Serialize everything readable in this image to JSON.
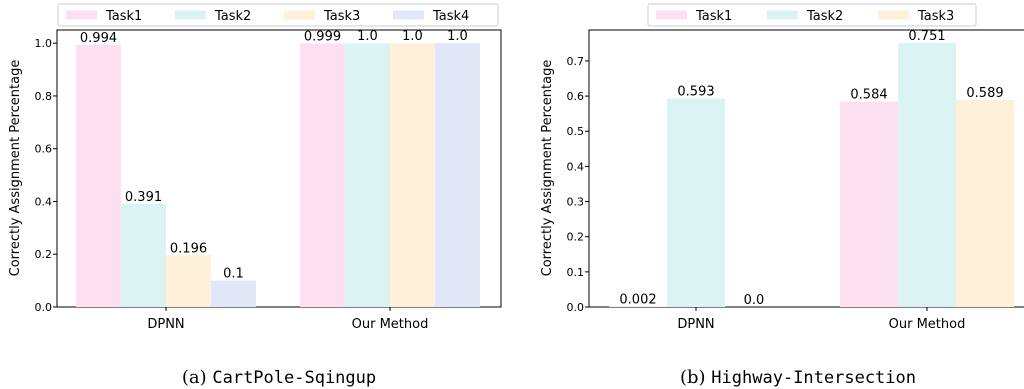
{
  "colors": [
    "#fde0ef",
    "#dbf4f3",
    "#fef0d9",
    "#e2e7f8"
  ],
  "chart_data": [
    {
      "type": "bar",
      "categories": [
        "DPNN",
        "Our Method"
      ],
      "series": [
        {
          "name": "Task1",
          "values": [
            0.994,
            0.999
          ],
          "labels": [
            "0.994",
            "0.999"
          ]
        },
        {
          "name": "Task2",
          "values": [
            0.391,
            1.0
          ],
          "labels": [
            "0.391",
            "1.0"
          ]
        },
        {
          "name": "Task3",
          "values": [
            0.196,
            1.0
          ],
          "labels": [
            "0.196",
            "1.0"
          ]
        },
        {
          "name": "Task4",
          "values": [
            0.1,
            1.0
          ],
          "labels": [
            "0.1",
            "1.0"
          ]
        }
      ],
      "ylabel": "Correctly Assignment Percentage",
      "ylim": [
        0,
        1.05
      ],
      "yticks": [
        "0.0",
        "0.2",
        "0.4",
        "0.6",
        "0.8",
        "1.0"
      ],
      "legend": "top",
      "caption_prefix": "(a) ",
      "caption_env": "CartPole-Sqingup"
    },
    {
      "type": "bar",
      "categories": [
        "DPNN",
        "Our Method"
      ],
      "series": [
        {
          "name": "Task1",
          "values": [
            0.002,
            0.584
          ],
          "labels": [
            "0.002",
            "0.584"
          ]
        },
        {
          "name": "Task2",
          "values": [
            0.593,
            0.751
          ],
          "labels": [
            "0.593",
            "0.751"
          ]
        },
        {
          "name": "Task3",
          "values": [
            0.0,
            0.589
          ],
          "labels": [
            "0.0",
            "0.589"
          ]
        }
      ],
      "ylabel": "Correctly Assignment Percentage",
      "ylim": [
        0,
        0.788
      ],
      "yticks": [
        "0.0",
        "0.1",
        "0.2",
        "0.3",
        "0.4",
        "0.5",
        "0.6",
        "0.7"
      ],
      "legend": "top",
      "caption_prefix": "(b) ",
      "caption_env": "Highway-Intersection"
    }
  ]
}
